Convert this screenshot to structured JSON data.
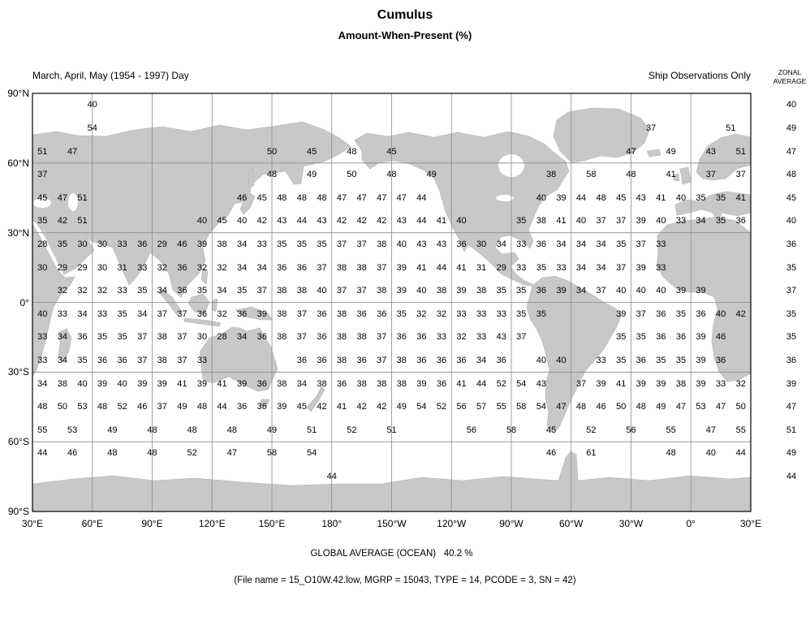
{
  "title": "Cumulus",
  "subtitle": "Amount-When-Present (%)",
  "header": {
    "season": "March, April, May (1954 - 1997) Day",
    "source": "Ship Observations Only",
    "zonal_label_line1": "ZONAL",
    "zonal_label_line2": "AVERAGE"
  },
  "footer": {
    "global_average": "GLOBAL AVERAGE (OCEAN)   40.2 %",
    "file_info": "(File name = 15_O10W.42.low, MGRP = 15043, TYPE = 14, PCODE = 3, SN = 42)"
  },
  "chart_data": {
    "type": "heatmap",
    "title": "Cumulus",
    "subtitle": "Amount-When-Present (%)",
    "units": "%",
    "global_average_ocean_pct": 40.2,
    "grid": {
      "lon_start": "30E",
      "cell_deg": 10,
      "cols": 36,
      "lat_bands": 18
    },
    "x_axis": {
      "labels": [
        "30°E",
        "60°E",
        "90°E",
        "120°E",
        "150°E",
        "180°",
        "150°W",
        "120°W",
        "90°W",
        "60°W",
        "30°W",
        "0°",
        "30°E"
      ]
    },
    "y_axis": {
      "labels": [
        "90°N",
        "60°N",
        "30°N",
        "0°",
        "30°S",
        "60°S",
        "90°S"
      ]
    },
    "zonal_averages": [
      40,
      49,
      47,
      48,
      45,
      40,
      36,
      35,
      37,
      35,
      35,
      36,
      39,
      47,
      51,
      49,
      44
    ],
    "colors": {
      "land": "#c8c8c8",
      "ocean": "#ffffff",
      "grid": "#8a8a8a",
      "border": "#000000",
      "text": "#000000"
    },
    "rows": [
      {
        "band": "80N-90N",
        "zonal": 40,
        "cells": [
          [
            2.5,
            40
          ]
        ]
      },
      {
        "band": "70N-80N",
        "zonal": 49,
        "cells": [
          [
            2.5,
            54
          ],
          [
            30.5,
            37
          ],
          [
            34.5,
            51
          ]
        ]
      },
      {
        "band": "60N-70N",
        "zonal": 47,
        "cells": [
          [
            0,
            51
          ],
          [
            1.5,
            47
          ],
          [
            35,
            51
          ]
        ],
        "runs": [
          [
            11.5,
            2,
            [
              50,
              45,
              48,
              45
            ]
          ],
          [
            29.5,
            2,
            [
              47,
              49,
              43
            ]
          ]
        ]
      },
      {
        "band": "50N-60N",
        "zonal": 48,
        "cells": [
          [
            0,
            37
          ],
          [
            35,
            37
          ]
        ],
        "runs": [
          [
            11.5,
            2,
            [
              48,
              49,
              50,
              48,
              49
            ]
          ],
          [
            25.5,
            2,
            [
              38,
              58,
              48,
              41,
              37
            ]
          ]
        ]
      },
      {
        "band": "40N-50N",
        "zonal": 45,
        "runs": [
          [
            0,
            1,
            [
              45,
              47,
              51
            ]
          ],
          [
            10,
            1,
            [
              46,
              45,
              48,
              48,
              48,
              47,
              47,
              47,
              47,
              44
            ]
          ],
          [
            25,
            1,
            [
              40,
              39,
              44,
              48,
              45,
              43,
              41,
              40,
              35,
              35,
              41
            ]
          ]
        ]
      },
      {
        "band": "30N-40N",
        "zonal": 40,
        "runs": [
          [
            0,
            1,
            [
              35,
              42,
              51
            ]
          ],
          [
            8,
            1,
            [
              40,
              45,
              40,
              42,
              43,
              44,
              43,
              42,
              42,
              42,
              43,
              44,
              41,
              40
            ]
          ],
          [
            24,
            1,
            [
              35,
              38,
              41,
              40,
              37,
              37,
              39,
              40,
              33,
              34,
              35,
              36
            ]
          ]
        ]
      },
      {
        "band": "20N-30N",
        "zonal": 36,
        "runs": [
          [
            0,
            1,
            [
              28,
              35,
              30,
              30,
              33,
              36,
              29,
              46,
              39,
              38,
              34,
              33,
              35,
              35,
              35,
              37,
              37,
              38,
              40,
              43,
              43,
              36,
              30,
              34,
              33,
              36,
              34,
              34,
              34,
              35,
              37,
              33
            ]
          ]
        ]
      },
      {
        "band": "10N-20N",
        "zonal": 35,
        "runs": [
          [
            0,
            1,
            [
              30,
              29,
              29,
              30,
              31,
              33,
              32,
              36,
              32,
              32,
              34,
              34,
              36,
              36,
              37,
              38,
              38,
              37,
              39,
              41,
              44,
              41,
              31,
              29,
              33,
              35,
              33,
              34,
              34,
              37,
              39,
              33
            ]
          ]
        ]
      },
      {
        "band": "0-10N",
        "zonal": 37,
        "runs": [
          [
            1,
            1,
            [
              32,
              32,
              32,
              33,
              35,
              34,
              36,
              35,
              34,
              35,
              37,
              38,
              38,
              40,
              37,
              37,
              38,
              39,
              40,
              38,
              39,
              38,
              35,
              35,
              36,
              39,
              34,
              37,
              40,
              40,
              40,
              39,
              39
            ]
          ]
        ]
      },
      {
        "band": "0-10S",
        "zonal": 35,
        "runs": [
          [
            0,
            1,
            [
              40,
              33,
              34,
              33,
              35,
              34,
              37,
              37,
              36,
              32,
              36,
              39,
              38,
              37,
              36,
              38,
              36,
              36,
              35,
              32,
              32,
              33,
              33,
              33,
              35,
              35
            ]
          ],
          [
            29,
            1,
            [
              39,
              37,
              36,
              35,
              36,
              40,
              42
            ]
          ]
        ]
      },
      {
        "band": "10S-20S",
        "zonal": 35,
        "runs": [
          [
            0,
            1,
            [
              33,
              34,
              36,
              35,
              35,
              37,
              38,
              37,
              30,
              28,
              34,
              36,
              38,
              37,
              36,
              38,
              38,
              37,
              36,
              36,
              33,
              32,
              33,
              43,
              37
            ]
          ],
          [
            29,
            1,
            [
              35,
              35,
              36,
              36,
              39,
              46
            ]
          ]
        ]
      },
      {
        "band": "20S-30S",
        "zonal": 36,
        "runs": [
          [
            0,
            1,
            [
              33,
              34,
              35,
              36,
              36,
              37,
              38,
              37,
              33
            ]
          ],
          [
            13,
            1,
            [
              36,
              36,
              38,
              36,
              37,
              38,
              36,
              36,
              36,
              34,
              36
            ]
          ],
          [
            25,
            1,
            [
              40,
              40
            ]
          ],
          [
            28,
            1,
            [
              33,
              35,
              36,
              35,
              35,
              39,
              36
            ]
          ]
        ]
      },
      {
        "band": "30S-40S",
        "zonal": 39,
        "runs": [
          [
            0,
            1,
            [
              34,
              38,
              40,
              39,
              40,
              39,
              39,
              41,
              39,
              41,
              39,
              36,
              38,
              34,
              38,
              36,
              38,
              38,
              38,
              39,
              36,
              41,
              44,
              52,
              54,
              43
            ]
          ],
          [
            27,
            1,
            [
              37,
              39,
              41,
              39,
              39,
              38,
              39,
              33,
              32
            ]
          ]
        ]
      },
      {
        "band": "40S-50S",
        "zonal": 47,
        "runs": [
          [
            0,
            1,
            [
              48,
              50,
              53,
              48,
              52,
              46,
              37,
              49,
              48,
              44,
              36,
              36,
              39,
              45,
              42,
              41,
              42,
              42,
              49,
              54,
              52,
              56,
              57,
              55,
              58,
              54,
              47,
              48,
              46,
              50,
              48,
              49,
              47,
              53,
              47,
              50
            ]
          ]
        ]
      },
      {
        "band": "50S-60S",
        "zonal": 51,
        "cells": [
          [
            0,
            55
          ],
          [
            35,
            55
          ]
        ],
        "runs": [
          [
            1.5,
            2,
            [
              53,
              49,
              48,
              48,
              48,
              49,
              51,
              52,
              51
            ]
          ],
          [
            21.5,
            2,
            [
              56,
              58,
              45,
              52,
              56,
              55,
              47
            ]
          ]
        ]
      },
      {
        "band": "60S-70S",
        "zonal": 49,
        "cells": [
          [
            0,
            44
          ],
          [
            35,
            44
          ]
        ],
        "runs": [
          [
            1.5,
            2,
            [
              46,
              48,
              48,
              52,
              47,
              58,
              54
            ]
          ],
          [
            25.5,
            2,
            [
              46,
              61
            ]
          ],
          [
            31.5,
            2,
            [
              48,
              40
            ]
          ]
        ]
      },
      {
        "band": "70S-80S",
        "zonal": 44,
        "cells": [
          [
            14.5,
            44
          ]
        ]
      }
    ]
  }
}
